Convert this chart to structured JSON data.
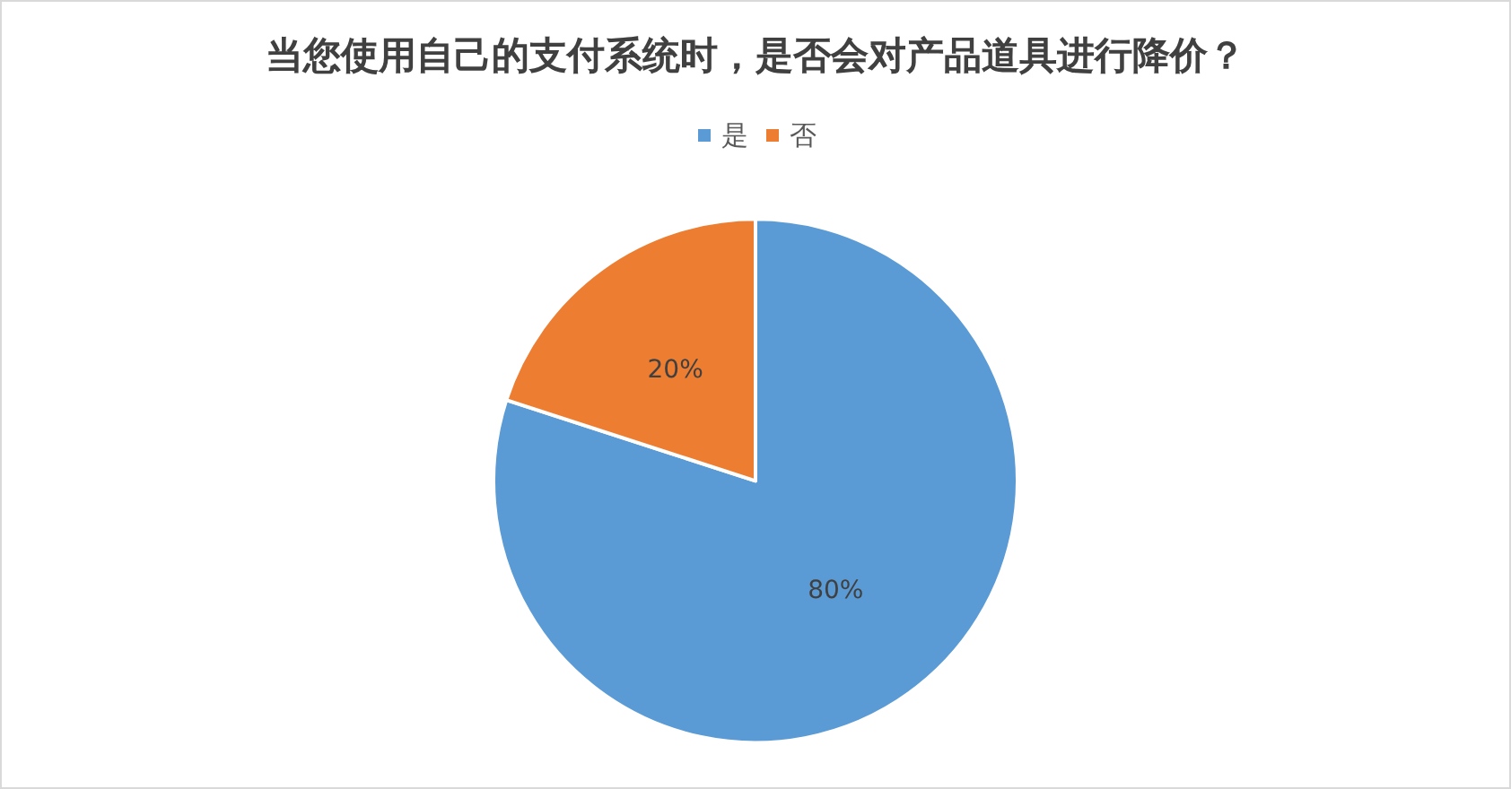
{
  "chart_data": {
    "type": "pie",
    "title": "当您使用自己的支付系统时，是否会对产品道具进行降价？",
    "categories": [
      "是",
      "否"
    ],
    "values": [
      80,
      20
    ],
    "colors": [
      "#5b9bd5",
      "#ed7d31"
    ],
    "value_labels": [
      "80%",
      "20%"
    ],
    "legend": "top"
  }
}
